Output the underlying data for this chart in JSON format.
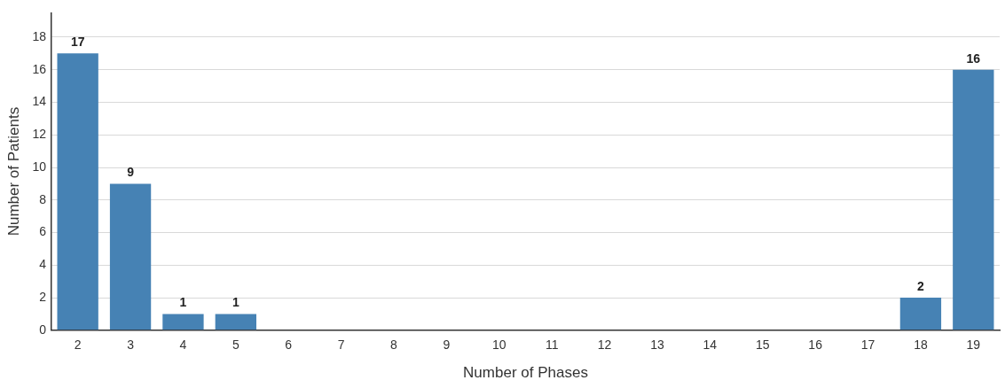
{
  "chart_data": {
    "type": "bar",
    "xlabel": "Number of Phases",
    "ylabel": "Number of Patients",
    "categories": [
      "2",
      "3",
      "4",
      "5",
      "6",
      "7",
      "8",
      "9",
      "10",
      "11",
      "12",
      "13",
      "14",
      "15",
      "16",
      "17",
      "18",
      "19"
    ],
    "values": [
      17,
      9,
      1,
      1,
      0,
      0,
      0,
      0,
      0,
      0,
      0,
      0,
      0,
      0,
      0,
      0,
      2,
      16
    ],
    "value_labels": [
      "17",
      "9",
      "1",
      "1",
      null,
      null,
      null,
      null,
      null,
      null,
      null,
      null,
      null,
      null,
      null,
      null,
      "2",
      "16"
    ],
    "color": "#4682b4",
    "ylim": [
      0,
      19.5
    ],
    "yticks": [
      0,
      2,
      4,
      6,
      8,
      10,
      12,
      14,
      16,
      18
    ],
    "grid": "y",
    "legend": false
  }
}
